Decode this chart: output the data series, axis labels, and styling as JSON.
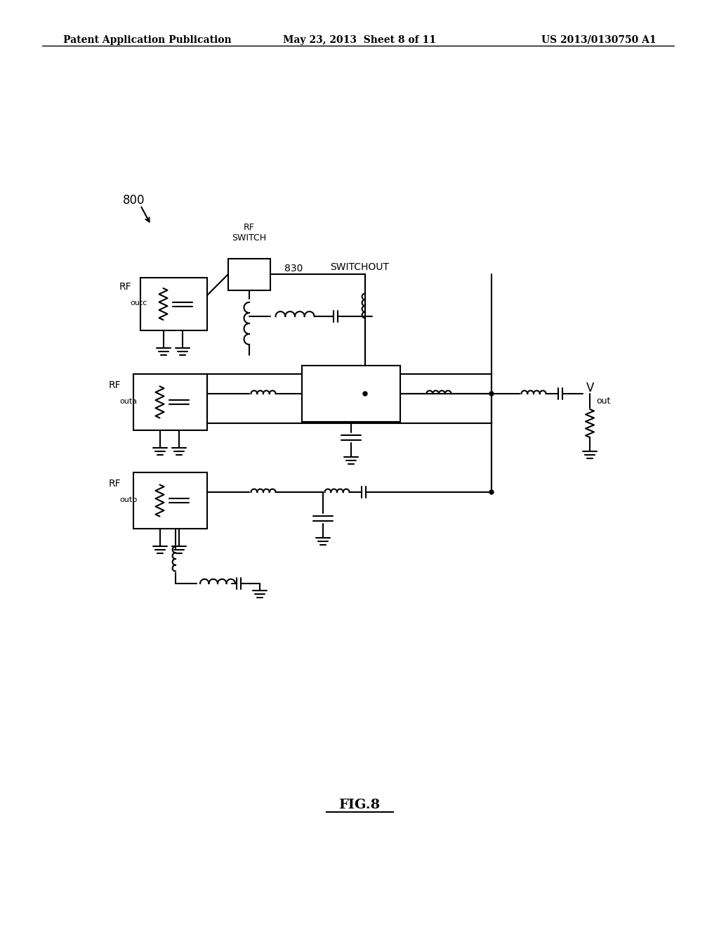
{
  "bg_color": "#ffffff",
  "line_color": "#000000",
  "header_left": "Patent Application Publication",
  "header_mid": "May 23, 2013  Sheet 8 of 11",
  "header_right": "US 2013/0130750 A1",
  "figure_label": "FIG.8",
  "fig_number": "800",
  "label_outc": "RF",
  "label_outc_sub": "outc",
  "label_outa": "RF",
  "label_outa_sub": "outa",
  "label_outb": "RF",
  "label_outb_sub": "outb",
  "label_switch": "RF\nSWITCH",
  "label_830": "830",
  "label_switchout": "SWITCHOUT",
  "label_vout": "V",
  "label_vout_sub": "out"
}
